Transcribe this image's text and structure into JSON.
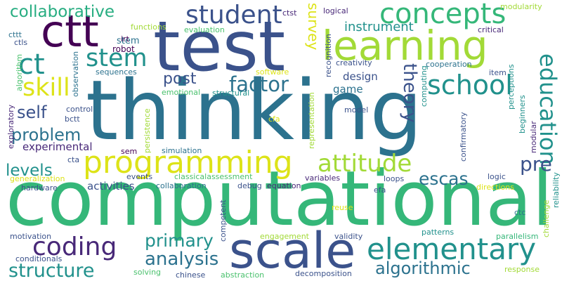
{
  "colors": {
    "green": "#35b779",
    "teal": "#2c728e",
    "navy": "#3b528b",
    "purple": "#482878",
    "dark": "#440154",
    "mint": "#4ac16d",
    "sea": "#21918c",
    "lime": "#a2da37",
    "yellow": "#dde318",
    "aqua": "#27ad81"
  },
  "words": [
    {
      "key": "thinking",
      "text": "thinking"
    },
    {
      "key": "computational",
      "text": "computational"
    },
    {
      "key": "test",
      "text": "test"
    },
    {
      "key": "learning",
      "text": "learning"
    },
    {
      "key": "ctt",
      "text": "ctt"
    },
    {
      "key": "student",
      "text": "student"
    },
    {
      "key": "concepts",
      "text": "concepts"
    },
    {
      "key": "collaborative",
      "text": "collaborative"
    },
    {
      "key": "scale",
      "text": "scale"
    },
    {
      "key": "programming",
      "text": "programming"
    },
    {
      "key": "elementary",
      "text": "elementary"
    },
    {
      "key": "education",
      "text": "education"
    },
    {
      "key": "school",
      "text": "school"
    },
    {
      "key": "ct",
      "text": "ct"
    },
    {
      "key": "stem",
      "text": "stem"
    },
    {
      "key": "skill",
      "text": "skill"
    },
    {
      "key": "coding",
      "text": "coding"
    },
    {
      "key": "attitude",
      "text": "attitude"
    },
    {
      "key": "structure",
      "text": "structure"
    },
    {
      "key": "algorithmic",
      "text": "algorithmic"
    },
    {
      "key": "analysis",
      "text": "analysis"
    },
    {
      "key": "primary",
      "text": "primary"
    },
    {
      "key": "problem",
      "text": "problem"
    },
    {
      "key": "factor",
      "text": "factor"
    },
    {
      "key": "post",
      "text": "post"
    },
    {
      "key": "self",
      "text": "self"
    },
    {
      "key": "levels",
      "text": "levels"
    },
    {
      "key": "escas",
      "text": "escas"
    },
    {
      "key": "pre",
      "text": "pre"
    },
    {
      "key": "instrument",
      "text": "instrument"
    },
    {
      "key": "theory",
      "text": "theory"
    },
    {
      "key": "survey",
      "text": "survey"
    },
    {
      "key": "design",
      "text": "design"
    },
    {
      "key": "game",
      "text": "game"
    },
    {
      "key": "experimental",
      "text": "experimental"
    },
    {
      "key": "activities",
      "text": "activities"
    },
    {
      "key": "stem2",
      "text": "stem"
    },
    {
      "key": "robot",
      "text": "robot"
    },
    {
      "key": "cttt",
      "text": "cttt"
    },
    {
      "key": "ctls",
      "text": "ctls"
    },
    {
      "key": "irt",
      "text": "irt"
    },
    {
      "key": "functions",
      "text": "functions"
    },
    {
      "key": "evaluation",
      "text": "evaluation"
    },
    {
      "key": "ctst",
      "text": "ctst"
    },
    {
      "key": "logical",
      "text": "logical"
    },
    {
      "key": "modularity",
      "text": "modularity"
    },
    {
      "key": "critical",
      "text": "critical"
    },
    {
      "key": "creativity",
      "text": "creativity"
    },
    {
      "key": "cooperation",
      "text": "cooperation"
    },
    {
      "key": "item",
      "text": "item"
    },
    {
      "key": "software",
      "text": "software"
    },
    {
      "key": "sequences",
      "text": "sequences"
    },
    {
      "key": "emotional",
      "text": "emotional"
    },
    {
      "key": "structural",
      "text": "structural"
    },
    {
      "key": "control",
      "text": "control"
    },
    {
      "key": "bctt",
      "text": "bctt"
    },
    {
      "key": "model",
      "text": "model"
    },
    {
      "key": "cfa",
      "text": "cfa"
    },
    {
      "key": "sem",
      "text": "sem"
    },
    {
      "key": "simulation",
      "text": "simulation"
    },
    {
      "key": "cta",
      "text": "cta"
    },
    {
      "key": "events",
      "text": "events"
    },
    {
      "key": "classicalassessment",
      "text": "classicalassessment"
    },
    {
      "key": "logic",
      "text": "logic"
    },
    {
      "key": "generalization",
      "text": "generalization"
    },
    {
      "key": "hardware",
      "text": "hardware"
    },
    {
      "key": "collaboration",
      "text": "collaboration"
    },
    {
      "key": "debug",
      "text": "debug"
    },
    {
      "key": "equation",
      "text": "equation"
    },
    {
      "key": "variables",
      "text": "variables"
    },
    {
      "key": "loops",
      "text": "loops"
    },
    {
      "key": "efa",
      "text": "efa"
    },
    {
      "key": "directions",
      "text": "directions"
    },
    {
      "key": "ctc",
      "text": "ctc"
    },
    {
      "key": "reuse",
      "text": "reuse"
    },
    {
      "key": "motivation",
      "text": "motivation"
    },
    {
      "key": "engagement",
      "text": "engagement"
    },
    {
      "key": "validity",
      "text": "validity"
    },
    {
      "key": "patterns",
      "text": "patterns"
    },
    {
      "key": "parallelism",
      "text": "parallelism"
    },
    {
      "key": "conditionals",
      "text": "conditionals"
    },
    {
      "key": "solving",
      "text": "solving"
    },
    {
      "key": "chinese",
      "text": "chinese"
    },
    {
      "key": "abstraction",
      "text": "abstraction"
    },
    {
      "key": "decomposition",
      "text": "decomposition"
    },
    {
      "key": "response",
      "text": "response"
    },
    {
      "key": "algorithm",
      "text": "algorithm"
    },
    {
      "key": "observation",
      "text": "observation"
    },
    {
      "key": "exploratory",
      "text": "exploratory"
    },
    {
      "key": "persistence",
      "text": "persistence"
    },
    {
      "key": "recognition",
      "text": "recognition"
    },
    {
      "key": "representation",
      "text": "representation"
    },
    {
      "key": "computing",
      "text": "computing"
    },
    {
      "key": "perceptions",
      "text": "perceptions"
    },
    {
      "key": "beginners",
      "text": "beginners"
    },
    {
      "key": "modular",
      "text": "modular"
    },
    {
      "key": "confirmatory",
      "text": "confirmatory"
    },
    {
      "key": "competent",
      "text": "competent"
    },
    {
      "key": "challenge",
      "text": "challenge"
    },
    {
      "key": "reliability",
      "text": "reliability"
    }
  ]
}
